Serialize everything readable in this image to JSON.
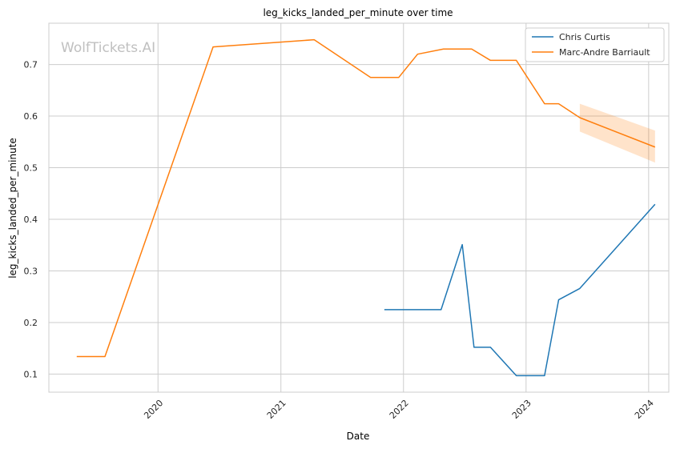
{
  "chart_data": {
    "type": "line",
    "title": "leg_kicks_landed_per_minute over time",
    "xlabel": "Date",
    "ylabel": "leg_kicks_landed_per_minute",
    "watermark": "WolfTickets.AI",
    "xlim": [
      "2019-02-10",
      "2024-03-01"
    ],
    "ylim": [
      0.065,
      0.78
    ],
    "x_ticks": [
      "2020",
      "2021",
      "2022",
      "2023",
      "2024"
    ],
    "y_ticks": [
      "0.1",
      "0.2",
      "0.3",
      "0.4",
      "0.5",
      "0.6",
      "0.7"
    ],
    "grid": true,
    "legend_position": "top-right",
    "series": [
      {
        "name": "Chris Curtis",
        "color": "#1f77b4",
        "points": [
          {
            "x": "2021-11-05",
            "y": 0.225
          },
          {
            "x": "2022-04-23",
            "y": 0.225
          },
          {
            "x": "2022-06-25",
            "y": 0.351
          },
          {
            "x": "2022-07-30",
            "y": 0.152
          },
          {
            "x": "2022-09-17",
            "y": 0.152
          },
          {
            "x": "2022-12-03",
            "y": 0.097
          },
          {
            "x": "2023-02-25",
            "y": 0.097
          },
          {
            "x": "2023-04-08",
            "y": 0.244
          },
          {
            "x": "2023-06-10",
            "y": 0.266
          },
          {
            "x": "2024-01-20",
            "y": 0.429
          }
        ]
      },
      {
        "name": "Marc-Andre Barriault",
        "color": "#ff7f0e",
        "points": [
          {
            "x": "2019-05-04",
            "y": 0.134
          },
          {
            "x": "2019-07-27",
            "y": 0.134
          },
          {
            "x": "2020-06-13",
            "y": 0.734
          },
          {
            "x": "2021-04-10",
            "y": 0.748
          },
          {
            "x": "2021-09-25",
            "y": 0.675
          },
          {
            "x": "2021-12-18",
            "y": 0.675
          },
          {
            "x": "2022-02-12",
            "y": 0.72
          },
          {
            "x": "2022-04-30",
            "y": 0.73
          },
          {
            "x": "2022-07-23",
            "y": 0.73
          },
          {
            "x": "2022-09-17",
            "y": 0.708
          },
          {
            "x": "2022-12-03",
            "y": 0.708
          },
          {
            "x": "2023-02-25",
            "y": 0.624
          },
          {
            "x": "2023-04-08",
            "y": 0.624
          },
          {
            "x": "2023-06-10",
            "y": 0.597
          },
          {
            "x": "2024-01-20",
            "y": 0.54
          }
        ],
        "band": [
          {
            "x": "2023-06-10",
            "low": 0.57,
            "high": 0.624
          },
          {
            "x": "2024-01-20",
            "low": 0.51,
            "high": 0.572
          }
        ]
      }
    ]
  }
}
